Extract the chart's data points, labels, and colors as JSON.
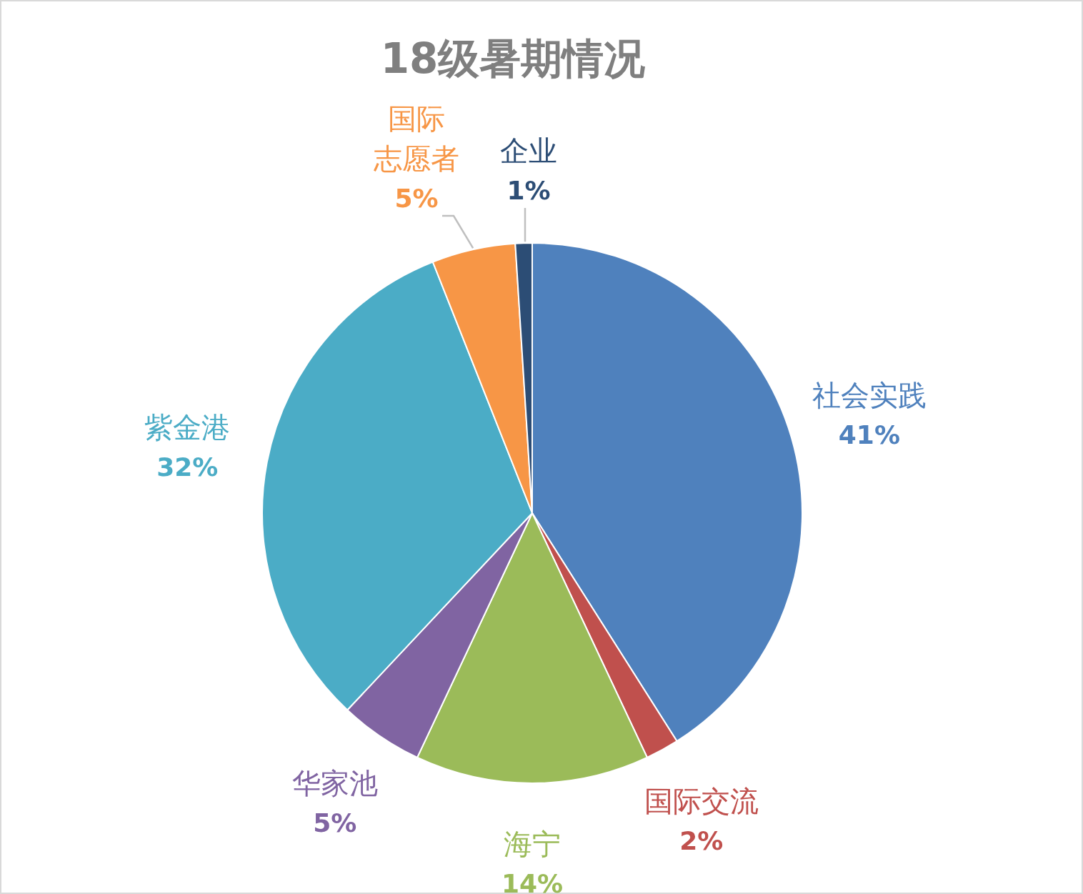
{
  "chart_data": {
    "type": "pie",
    "title": "18级暑期情况",
    "categories": [
      "社会实践",
      "国际交流",
      "海宁",
      "华家池",
      "紫金港",
      "国际志愿者",
      "企业"
    ],
    "values": [
      41,
      2,
      14,
      5,
      32,
      5,
      1
    ],
    "value_labels": [
      "41%",
      "2%",
      "14%",
      "5%",
      "32%",
      "5%",
      "1%"
    ],
    "colors": [
      "#4f81bd",
      "#c0504d",
      "#9bbb59",
      "#8064a2",
      "#4bacc6",
      "#f79646",
      "#2c4d75"
    ],
    "legend": false
  }
}
